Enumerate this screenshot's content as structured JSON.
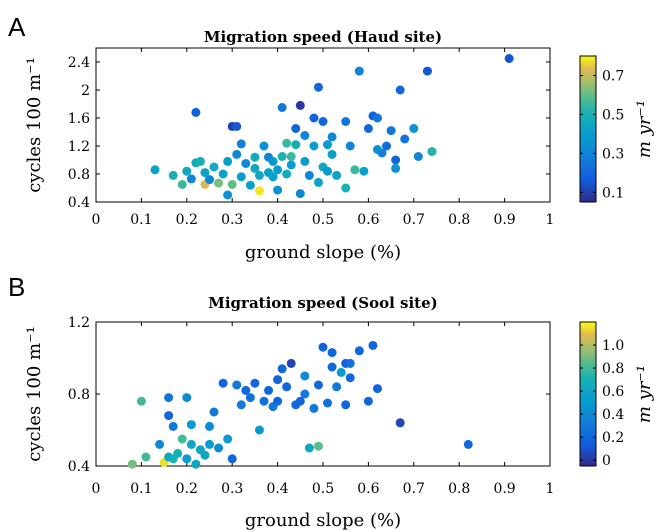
{
  "chart_data": [
    {
      "type": "scatter",
      "panel": "A",
      "title": "Migration speed (Haud site)",
      "xlabel": "ground slope (%)",
      "ylabel": "cycles 100 m⁻¹",
      "xlim": [
        0,
        1
      ],
      "ylim": [
        0.4,
        2.6
      ],
      "xticks": [
        "0",
        "0.1",
        "0.2",
        "0.3",
        "0.4",
        "0.5",
        "0.6",
        "0.7",
        "0.8",
        "0.9",
        "1"
      ],
      "yticks": [
        "0.4",
        "0.8",
        "1.2",
        "1.6",
        "2",
        "2.4"
      ],
      "colorbar": {
        "label": "m yr⁻¹",
        "min": 0.05,
        "max": 0.8,
        "ticks": [
          "0.1",
          "0.3",
          "0.5",
          "0.7"
        ]
      },
      "grid": false,
      "points": [
        {
          "x": 0.13,
          "y": 0.86,
          "c": 0.42
        },
        {
          "x": 0.17,
          "y": 0.78,
          "c": 0.5
        },
        {
          "x": 0.19,
          "y": 0.65,
          "c": 0.55
        },
        {
          "x": 0.2,
          "y": 0.84,
          "c": 0.45
        },
        {
          "x": 0.21,
          "y": 0.73,
          "c": 0.3
        },
        {
          "x": 0.22,
          "y": 1.68,
          "c": 0.18
        },
        {
          "x": 0.22,
          "y": 0.96,
          "c": 0.48
        },
        {
          "x": 0.23,
          "y": 0.98,
          "c": 0.5
        },
        {
          "x": 0.24,
          "y": 0.65,
          "c": 0.72
        },
        {
          "x": 0.24,
          "y": 0.82,
          "c": 0.42
        },
        {
          "x": 0.25,
          "y": 0.72,
          "c": 0.3
        },
        {
          "x": 0.26,
          "y": 0.9,
          "c": 0.45
        },
        {
          "x": 0.27,
          "y": 0.67,
          "c": 0.62
        },
        {
          "x": 0.28,
          "y": 0.8,
          "c": 0.42
        },
        {
          "x": 0.29,
          "y": 0.98,
          "c": 0.4
        },
        {
          "x": 0.29,
          "y": 0.5,
          "c": 0.35
        },
        {
          "x": 0.3,
          "y": 0.65,
          "c": 0.6
        },
        {
          "x": 0.3,
          "y": 1.48,
          "c": 0.1
        },
        {
          "x": 0.31,
          "y": 1.08,
          "c": 0.32
        },
        {
          "x": 0.31,
          "y": 1.48,
          "c": 0.15
        },
        {
          "x": 0.32,
          "y": 0.76,
          "c": 0.4
        },
        {
          "x": 0.32,
          "y": 1.23,
          "c": 0.28
        },
        {
          "x": 0.33,
          "y": 0.95,
          "c": 0.3
        },
        {
          "x": 0.34,
          "y": 0.64,
          "c": 0.42
        },
        {
          "x": 0.35,
          "y": 0.88,
          "c": 0.45
        },
        {
          "x": 0.35,
          "y": 1.04,
          "c": 0.48
        },
        {
          "x": 0.36,
          "y": 0.56,
          "c": 0.78
        },
        {
          "x": 0.36,
          "y": 0.78,
          "c": 0.45
        },
        {
          "x": 0.37,
          "y": 1.2,
          "c": 0.35
        },
        {
          "x": 0.38,
          "y": 0.82,
          "c": 0.42
        },
        {
          "x": 0.38,
          "y": 1.04,
          "c": 0.3
        },
        {
          "x": 0.39,
          "y": 0.76,
          "c": 0.42
        },
        {
          "x": 0.39,
          "y": 0.98,
          "c": 0.38
        },
        {
          "x": 0.4,
          "y": 0.57,
          "c": 0.35
        },
        {
          "x": 0.4,
          "y": 0.86,
          "c": 0.4
        },
        {
          "x": 0.41,
          "y": 1.75,
          "c": 0.25
        },
        {
          "x": 0.41,
          "y": 1.05,
          "c": 0.5
        },
        {
          "x": 0.42,
          "y": 0.8,
          "c": 0.48
        },
        {
          "x": 0.42,
          "y": 1.24,
          "c": 0.55
        },
        {
          "x": 0.43,
          "y": 0.93,
          "c": 0.38
        },
        {
          "x": 0.43,
          "y": 1.05,
          "c": 0.55
        },
        {
          "x": 0.44,
          "y": 1.45,
          "c": 0.2
        },
        {
          "x": 0.44,
          "y": 1.22,
          "c": 0.48
        },
        {
          "x": 0.45,
          "y": 0.52,
          "c": 0.32
        },
        {
          "x": 0.45,
          "y": 1.78,
          "c": 0.08
        },
        {
          "x": 0.46,
          "y": 0.98,
          "c": 0.4
        },
        {
          "x": 0.46,
          "y": 1.35,
          "c": 0.3
        },
        {
          "x": 0.47,
          "y": 0.78,
          "c": 0.3
        },
        {
          "x": 0.48,
          "y": 1.6,
          "c": 0.18
        },
        {
          "x": 0.48,
          "y": 1.2,
          "c": 0.4
        },
        {
          "x": 0.49,
          "y": 2.04,
          "c": 0.2
        },
        {
          "x": 0.49,
          "y": 0.68,
          "c": 0.42
        },
        {
          "x": 0.5,
          "y": 0.9,
          "c": 0.45
        },
        {
          "x": 0.5,
          "y": 1.55,
          "c": 0.2
        },
        {
          "x": 0.51,
          "y": 1.22,
          "c": 0.38
        },
        {
          "x": 0.51,
          "y": 0.84,
          "c": 0.38
        },
        {
          "x": 0.52,
          "y": 1.33,
          "c": 0.32
        },
        {
          "x": 0.52,
          "y": 1.08,
          "c": 0.42
        },
        {
          "x": 0.53,
          "y": 0.78,
          "c": 0.42
        },
        {
          "x": 0.55,
          "y": 1.55,
          "c": 0.25
        },
        {
          "x": 0.55,
          "y": 0.6,
          "c": 0.5
        },
        {
          "x": 0.56,
          "y": 1.2,
          "c": 0.3
        },
        {
          "x": 0.57,
          "y": 0.86,
          "c": 0.55
        },
        {
          "x": 0.58,
          "y": 2.27,
          "c": 0.3
        },
        {
          "x": 0.59,
          "y": 0.84,
          "c": 0.42
        },
        {
          "x": 0.6,
          "y": 1.45,
          "c": 0.2
        },
        {
          "x": 0.61,
          "y": 1.63,
          "c": 0.18
        },
        {
          "x": 0.62,
          "y": 1.6,
          "c": 0.25
        },
        {
          "x": 0.62,
          "y": 1.15,
          "c": 0.35
        },
        {
          "x": 0.63,
          "y": 1.1,
          "c": 0.3
        },
        {
          "x": 0.64,
          "y": 1.2,
          "c": 0.22
        },
        {
          "x": 0.65,
          "y": 1.42,
          "c": 0.25
        },
        {
          "x": 0.66,
          "y": 1.0,
          "c": 0.2
        },
        {
          "x": 0.66,
          "y": 0.88,
          "c": 0.35
        },
        {
          "x": 0.67,
          "y": 2.0,
          "c": 0.2
        },
        {
          "x": 0.68,
          "y": 1.3,
          "c": 0.25
        },
        {
          "x": 0.7,
          "y": 1.45,
          "c": 0.35
        },
        {
          "x": 0.71,
          "y": 1.05,
          "c": 0.3
        },
        {
          "x": 0.73,
          "y": 2.27,
          "c": 0.15
        },
        {
          "x": 0.74,
          "y": 1.12,
          "c": 0.52
        },
        {
          "x": 0.91,
          "y": 2.45,
          "c": 0.15
        }
      ]
    },
    {
      "type": "scatter",
      "panel": "B",
      "title": "Migration speed (Sool site)",
      "xlabel": "ground slope (%)",
      "ylabel": "cycles 100 m⁻¹",
      "xlim": [
        0,
        1
      ],
      "ylim": [
        0.4,
        1.2
      ],
      "xticks": [
        "0",
        "0.1",
        "0.2",
        "0.3",
        "0.4",
        "0.5",
        "0.6",
        "0.7",
        "0.8",
        "0.9",
        "1"
      ],
      "yticks": [
        "0.4",
        "0.8",
        "1.2"
      ],
      "colorbar": {
        "label": "m yr⁻¹",
        "min": -0.05,
        "max": 1.2,
        "ticks": [
          "0",
          "0.2",
          "0.4",
          "0.6",
          "0.8",
          "1.0"
        ]
      },
      "grid": false,
      "points": [
        {
          "x": 0.08,
          "y": 0.41,
          "c": 0.9
        },
        {
          "x": 0.1,
          "y": 0.76,
          "c": 0.8
        },
        {
          "x": 0.11,
          "y": 0.45,
          "c": 0.8
        },
        {
          "x": 0.14,
          "y": 0.52,
          "c": 0.4
        },
        {
          "x": 0.15,
          "y": 0.42,
          "c": 1.15
        },
        {
          "x": 0.16,
          "y": 0.78,
          "c": 0.3
        },
        {
          "x": 0.16,
          "y": 0.45,
          "c": 0.6
        },
        {
          "x": 0.16,
          "y": 0.68,
          "c": 0.2
        },
        {
          "x": 0.17,
          "y": 0.44,
          "c": 0.7
        },
        {
          "x": 0.17,
          "y": 0.62,
          "c": 0.3
        },
        {
          "x": 0.18,
          "y": 0.47,
          "c": 0.7
        },
        {
          "x": 0.19,
          "y": 0.55,
          "c": 0.8
        },
        {
          "x": 0.2,
          "y": 0.44,
          "c": 0.5
        },
        {
          "x": 0.2,
          "y": 0.78,
          "c": 0.4
        },
        {
          "x": 0.21,
          "y": 0.52,
          "c": 0.6
        },
        {
          "x": 0.21,
          "y": 0.63,
          "c": 0.5
        },
        {
          "x": 0.22,
          "y": 0.41,
          "c": 0.6
        },
        {
          "x": 0.23,
          "y": 0.49,
          "c": 0.6
        },
        {
          "x": 0.24,
          "y": 0.46,
          "c": 0.6
        },
        {
          "x": 0.25,
          "y": 0.62,
          "c": 0.4
        },
        {
          "x": 0.25,
          "y": 0.52,
          "c": 0.5
        },
        {
          "x": 0.26,
          "y": 0.7,
          "c": 0.3
        },
        {
          "x": 0.27,
          "y": 0.5,
          "c": 0.4
        },
        {
          "x": 0.28,
          "y": 0.86,
          "c": 0.2
        },
        {
          "x": 0.29,
          "y": 0.55,
          "c": 0.5
        },
        {
          "x": 0.3,
          "y": 0.44,
          "c": 0.2
        },
        {
          "x": 0.31,
          "y": 0.85,
          "c": 0.3
        },
        {
          "x": 0.32,
          "y": 0.74,
          "c": 0.3
        },
        {
          "x": 0.33,
          "y": 0.82,
          "c": 0.2
        },
        {
          "x": 0.34,
          "y": 0.78,
          "c": 0.25
        },
        {
          "x": 0.35,
          "y": 0.86,
          "c": 0.2
        },
        {
          "x": 0.36,
          "y": 0.6,
          "c": 0.5
        },
        {
          "x": 0.37,
          "y": 0.76,
          "c": 0.25
        },
        {
          "x": 0.38,
          "y": 0.82,
          "c": 0.2
        },
        {
          "x": 0.39,
          "y": 0.73,
          "c": 0.3
        },
        {
          "x": 0.4,
          "y": 0.76,
          "c": 0.2
        },
        {
          "x": 0.4,
          "y": 0.88,
          "c": 0.2
        },
        {
          "x": 0.41,
          "y": 0.94,
          "c": 0.2
        },
        {
          "x": 0.42,
          "y": 0.84,
          "c": 0.2
        },
        {
          "x": 0.43,
          "y": 0.97,
          "c": 0.05
        },
        {
          "x": 0.44,
          "y": 0.74,
          "c": 0.2
        },
        {
          "x": 0.45,
          "y": 0.76,
          "c": 0.2
        },
        {
          "x": 0.46,
          "y": 0.9,
          "c": 0.4
        },
        {
          "x": 0.46,
          "y": 0.8,
          "c": 0.3
        },
        {
          "x": 0.47,
          "y": 0.5,
          "c": 0.6
        },
        {
          "x": 0.48,
          "y": 0.72,
          "c": 0.3
        },
        {
          "x": 0.49,
          "y": 0.85,
          "c": 0.2
        },
        {
          "x": 0.49,
          "y": 0.51,
          "c": 0.85
        },
        {
          "x": 0.5,
          "y": 1.06,
          "c": 0.2
        },
        {
          "x": 0.51,
          "y": 0.75,
          "c": 0.25
        },
        {
          "x": 0.52,
          "y": 0.95,
          "c": 0.2
        },
        {
          "x": 0.52,
          "y": 1.03,
          "c": 0.2
        },
        {
          "x": 0.53,
          "y": 0.84,
          "c": 0.3
        },
        {
          "x": 0.54,
          "y": 0.92,
          "c": 0.5
        },
        {
          "x": 0.55,
          "y": 0.97,
          "c": 0.15
        },
        {
          "x": 0.55,
          "y": 0.74,
          "c": 0.2
        },
        {
          "x": 0.56,
          "y": 0.89,
          "c": 0.2
        },
        {
          "x": 0.56,
          "y": 0.97,
          "c": 0.25
        },
        {
          "x": 0.58,
          "y": 1.04,
          "c": 0.2
        },
        {
          "x": 0.6,
          "y": 0.76,
          "c": 0.2
        },
        {
          "x": 0.61,
          "y": 1.07,
          "c": 0.2
        },
        {
          "x": 0.62,
          "y": 0.83,
          "c": 0.2
        },
        {
          "x": 0.67,
          "y": 0.64,
          "c": 0.05
        },
        {
          "x": 0.82,
          "y": 0.52,
          "c": 0.2
        }
      ]
    }
  ]
}
